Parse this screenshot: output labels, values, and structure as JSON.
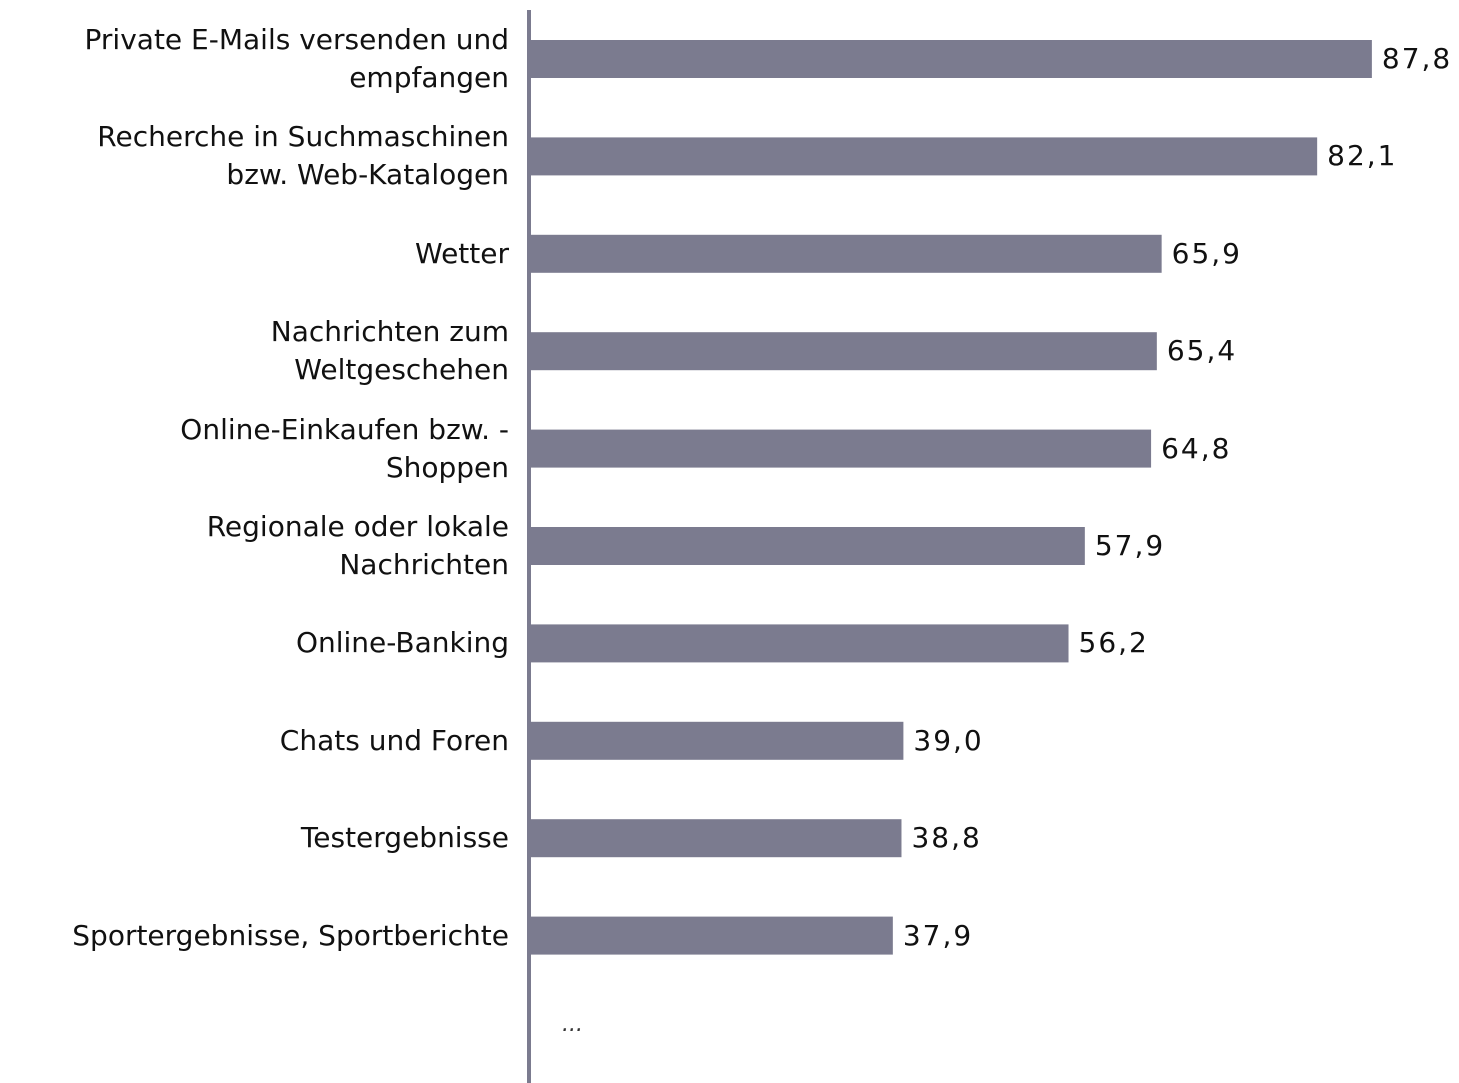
{
  "chart_data": {
    "type": "bar",
    "orientation": "horizontal",
    "categories": [
      "Private E-Mails versenden und\nempfangen",
      "Recherche in Suchmaschinen\nbzw. Web-Katalogen",
      "Wetter",
      "Nachrichten zum\nWeltgeschehen",
      "Online-Einkaufen bzw. -\nShoppen",
      "Regionale oder lokale\nNachrichten",
      "Online-Banking",
      "Chats und Foren",
      "Testergebnisse",
      "Sportergebnisse, Sportberichte"
    ],
    "values": [
      87.8,
      82.1,
      65.9,
      65.4,
      64.8,
      57.9,
      56.2,
      39.0,
      38.8,
      37.9
    ],
    "value_labels": [
      "87,8",
      "82,1",
      "65,9",
      "65,4",
      "64,8",
      "57,9",
      "56,2",
      "39,0",
      "38,8",
      "37,9"
    ],
    "color": "#7b7b8f",
    "xlim": [
      0,
      96
    ],
    "annotation": "..."
  }
}
